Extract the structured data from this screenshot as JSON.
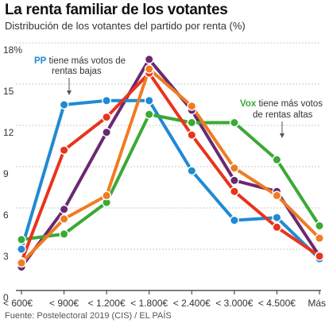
{
  "header": {
    "title": "La renta familiar de los votantes",
    "subtitle": "Distribución de los votantes del partido por renta (%)"
  },
  "footer": {
    "source": "Fuente: Postelectoral 2019 (CIS) / EL PAÍS"
  },
  "annotations": {
    "pp": {
      "party": "PP",
      "line1_rest": "tiene más votos de",
      "line2": "rentas bajas",
      "color": "#1f8ad4"
    },
    "vox": {
      "party": "Vox",
      "line1_rest": "tiene más votos",
      "line2": "de rentas altas",
      "color": "#3aa935"
    }
  },
  "chart_data": {
    "type": "line",
    "title": "La renta familiar de los votantes",
    "subtitle": "Distribución de los votantes del partido por renta (%)",
    "xlabel": "",
    "ylabel": "",
    "categories": [
      "< 600€",
      "< 900€",
      "< 1.200€",
      "< 1.800€",
      "< 2.400€",
      "< 3.000€",
      "< 4.500€",
      "Más"
    ],
    "ylim": [
      0,
      18
    ],
    "yticks": [
      0,
      3,
      6,
      9,
      12,
      15,
      18
    ],
    "ytick_labels": [
      "0",
      "3",
      "6",
      "9",
      "12",
      "15",
      "18%"
    ],
    "grid": true,
    "legend": "none",
    "series": [
      {
        "name": "PP",
        "color": "#1f8ad4",
        "values": [
          3.0,
          13.5,
          13.8,
          13.8,
          8.7,
          5.1,
          5.3,
          2.3
        ]
      },
      {
        "name": "Vox",
        "color": "#3aa935",
        "values": [
          3.7,
          4.1,
          6.4,
          12.8,
          12.2,
          12.2,
          9.5,
          4.7
        ]
      },
      {
        "color": "#ef7c22",
        "values": [
          2.0,
          5.2,
          6.9,
          16.1,
          13.4,
          8.9,
          6.9,
          3.8
        ]
      },
      {
        "color": "#e8341c",
        "values": [
          2.1,
          10.2,
          12.6,
          15.8,
          11.3,
          7.2,
          4.6,
          2.5
        ]
      },
      {
        "color": "#6b2872",
        "values": [
          1.7,
          5.9,
          11.5,
          16.8,
          13.1,
          8.0,
          7.2,
          2.5
        ]
      }
    ]
  }
}
